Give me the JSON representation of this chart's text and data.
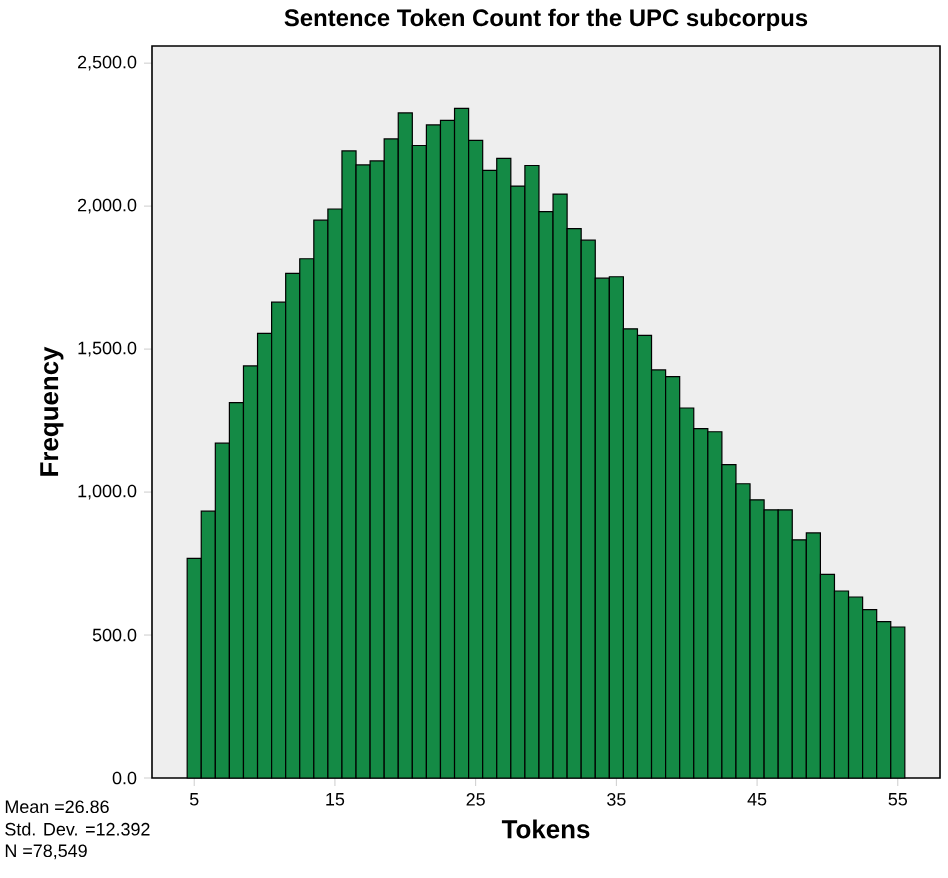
{
  "chart_data": {
    "type": "histogram",
    "title": "Sentence Token Count for the UPC subcorpus",
    "xlabel": "Tokens",
    "ylabel": "Frequency",
    "bins": [
      4.5,
      5.5,
      6.5,
      7.5,
      8.5,
      9.5,
      10.5,
      11.5,
      12.5,
      13.5,
      14.5,
      15.5,
      16.5,
      17.5,
      18.5,
      19.5,
      20.5,
      21.5,
      22.5,
      23.5,
      24.5,
      25.5,
      26.5,
      27.5,
      28.5,
      29.5,
      30.5,
      31.5,
      32.5,
      33.5,
      34.5,
      35.5,
      36.5,
      37.5,
      38.5,
      39.5,
      40.5,
      41.5,
      42.5,
      43.5,
      44.5,
      45.5,
      46.5,
      47.5,
      48.5,
      49.5,
      50.5,
      51.5,
      52.5,
      53.5,
      54.5,
      55.5
    ],
    "values": [
      768,
      933,
      1171,
      1313,
      1441,
      1555,
      1664,
      1765,
      1816,
      1951,
      1990,
      2193,
      2144,
      2158,
      2235,
      2326,
      2212,
      2284,
      2300,
      2342,
      2230,
      2125,
      2167,
      2070,
      2142,
      1981,
      2042,
      1921,
      1881,
      1748,
      1753,
      1571,
      1548,
      1427,
      1404,
      1294,
      1222,
      1211,
      1096,
      1029,
      973,
      938,
      938,
      833,
      857,
      712,
      654,
      633,
      589,
      547,
      528
    ],
    "color": "#148a45",
    "xlim": [
      2,
      58
    ],
    "ylim": [
      0,
      2560
    ],
    "xticks": [
      5,
      15,
      25,
      35,
      45,
      55
    ],
    "yticks": [
      {
        "value": 0,
        "label": "0.0"
      },
      {
        "value": 500,
        "label": "500.0"
      },
      {
        "value": 1000,
        "label": "1,000.0"
      },
      {
        "value": 1500,
        "label": "1,500.0"
      },
      {
        "value": 2000,
        "label": "2,000.0"
      },
      {
        "value": 2500,
        "label": "2,500.0"
      }
    ],
    "annotations": [
      "Mean =26.86",
      "Std. Dev. =12.392",
      "N =78,549"
    ]
  }
}
